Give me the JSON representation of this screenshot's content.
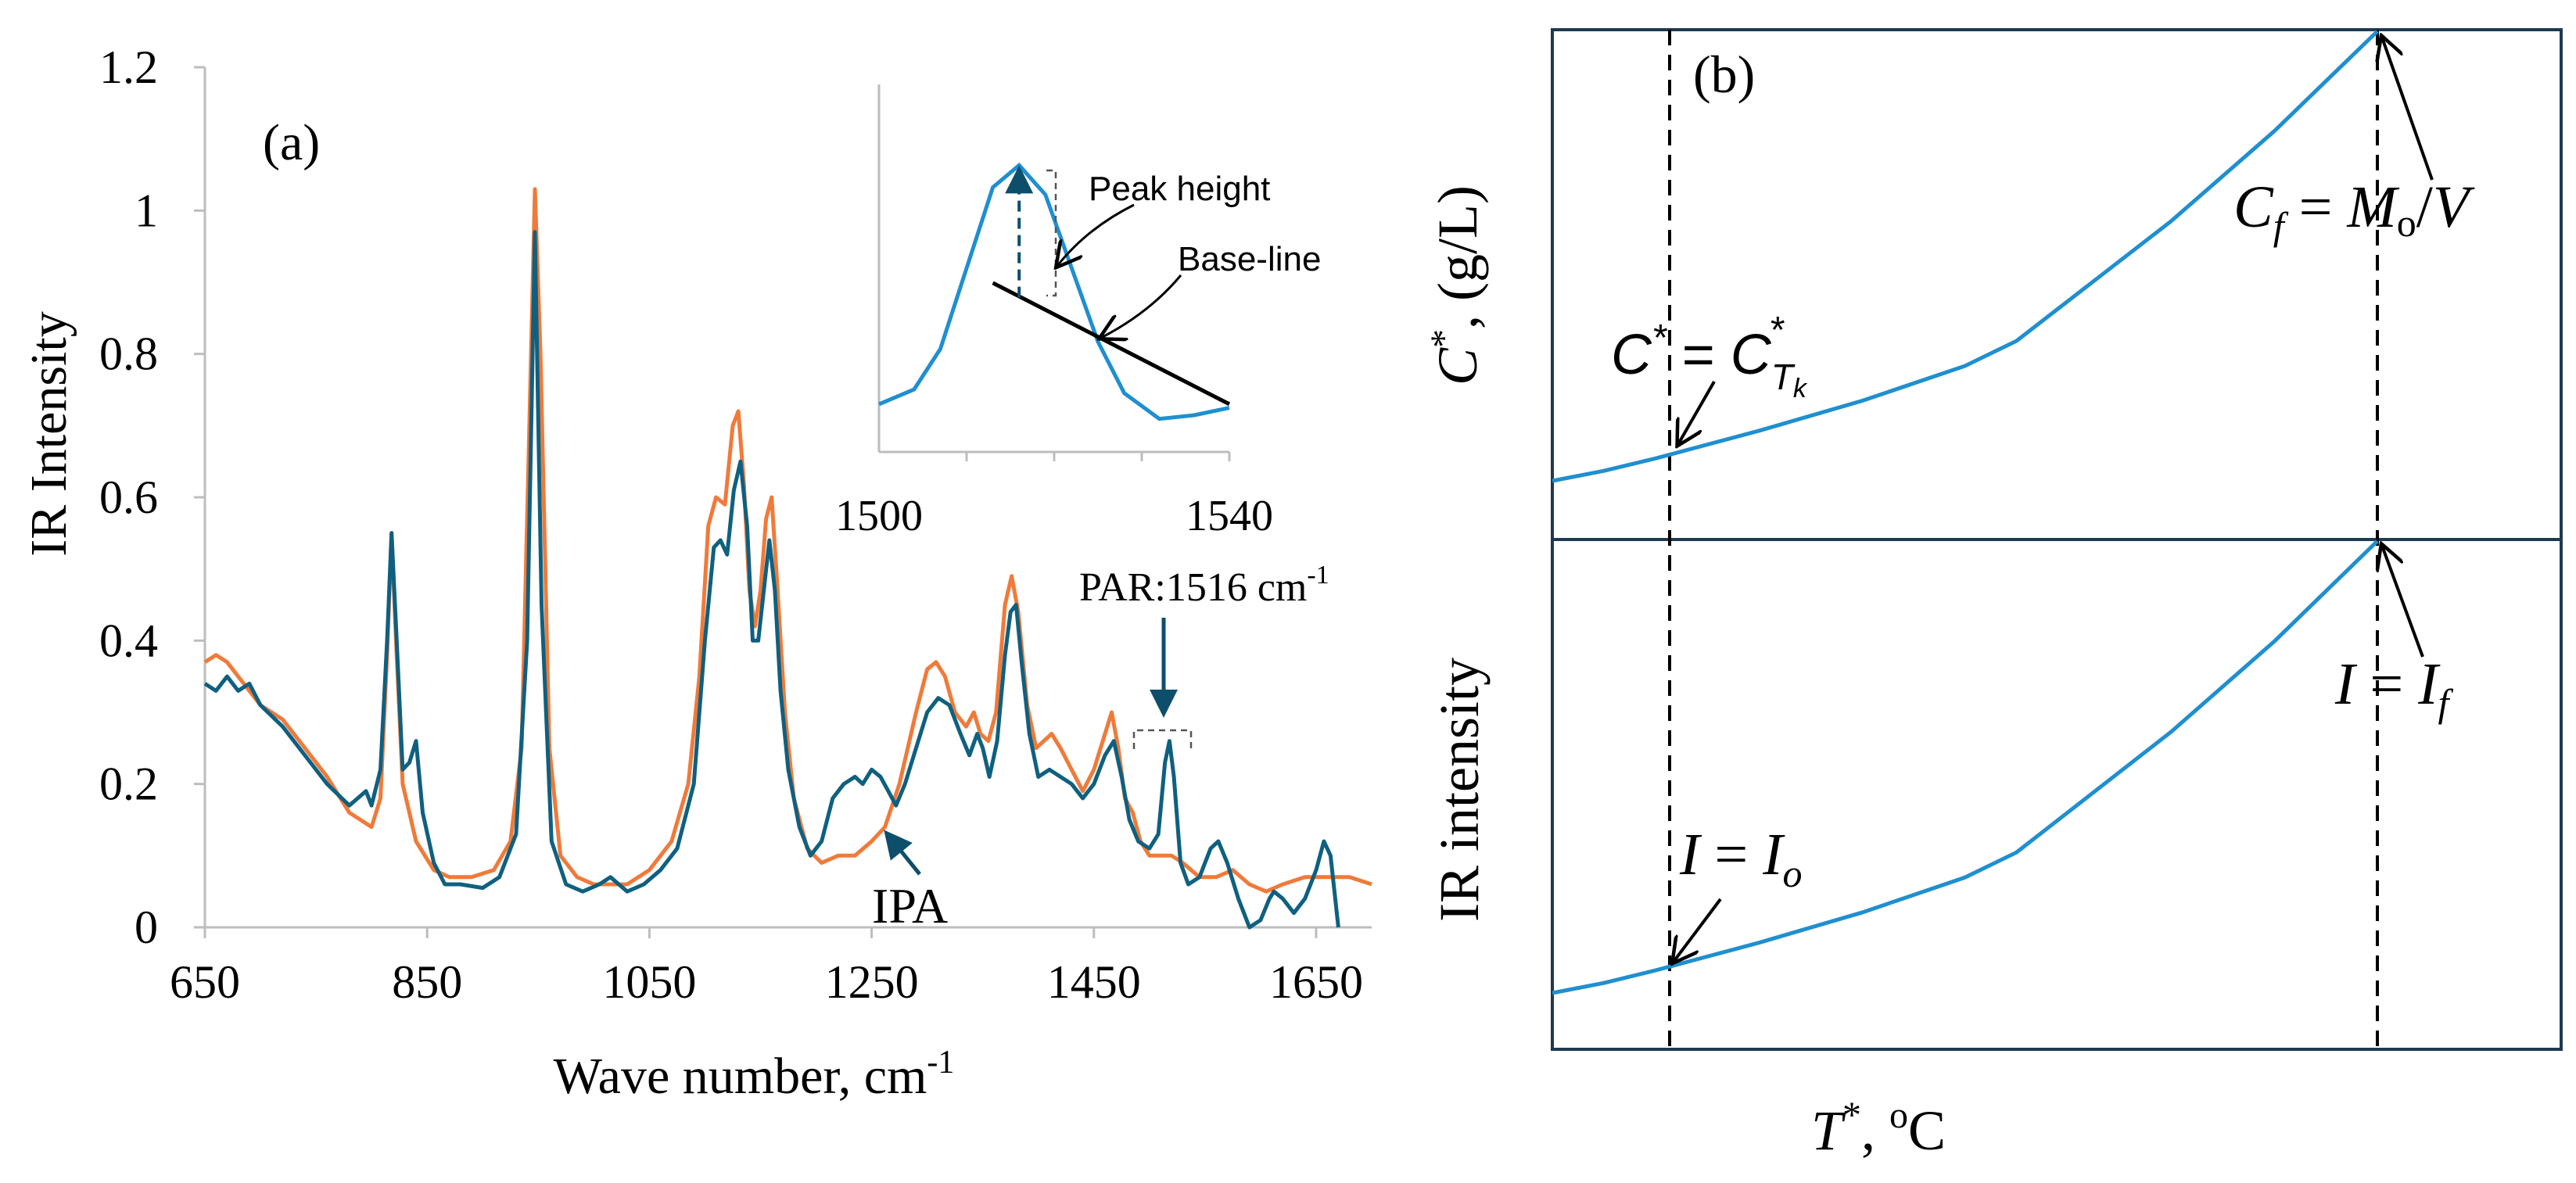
{
  "colors": {
    "blue_series": "#0f6080",
    "orange_series": "#f07a3a",
    "curve": "#1f8fd0",
    "annotation_blue": "#0d4f6b",
    "axis": "#bdbdbd",
    "frame": "#1e3a52",
    "text": "#000000"
  },
  "chart_data": [
    {
      "id": "a",
      "type": "line",
      "panel_label": "(a)",
      "xlabel_main": "Wave number, cm",
      "xlabel_sup": "-1",
      "ylabel": "IR Intensity",
      "xlim": [
        650,
        1700
      ],
      "ylim": [
        0,
        1.2
      ],
      "x_ticks": [
        650,
        850,
        1050,
        1250,
        1450,
        1650
      ],
      "y_ticks": [
        0,
        0.2,
        0.4,
        0.6,
        0.8,
        1,
        1.2
      ],
      "y_tick_labels": [
        "0",
        "0.2",
        "0.4",
        "0.6",
        "0.8",
        "1",
        "1.2"
      ],
      "series": [
        {
          "name": "PAR",
          "color_key": "blue_series",
          "points": [
            [
              650,
              0.34
            ],
            [
              660,
              0.33
            ],
            [
              670,
              0.35
            ],
            [
              680,
              0.33
            ],
            [
              690,
              0.34
            ],
            [
              700,
              0.31
            ],
            [
              720,
              0.28
            ],
            [
              740,
              0.24
            ],
            [
              760,
              0.2
            ],
            [
              780,
              0.17
            ],
            [
              795,
              0.19
            ],
            [
              800,
              0.17
            ],
            [
              808,
              0.22
            ],
            [
              814,
              0.4
            ],
            [
              818,
              0.55
            ],
            [
              822,
              0.42
            ],
            [
              828,
              0.22
            ],
            [
              834,
              0.23
            ],
            [
              840,
              0.26
            ],
            [
              846,
              0.16
            ],
            [
              856,
              0.09
            ],
            [
              866,
              0.06
            ],
            [
              880,
              0.06
            ],
            [
              900,
              0.055
            ],
            [
              915,
              0.07
            ],
            [
              930,
              0.13
            ],
            [
              940,
              0.4
            ],
            [
              947,
              0.97
            ],
            [
              953,
              0.45
            ],
            [
              962,
              0.12
            ],
            [
              975,
              0.06
            ],
            [
              990,
              0.05
            ],
            [
              1005,
              0.06
            ],
            [
              1015,
              0.07
            ],
            [
              1030,
              0.05
            ],
            [
              1045,
              0.06
            ],
            [
              1060,
              0.08
            ],
            [
              1075,
              0.11
            ],
            [
              1090,
              0.2
            ],
            [
              1100,
              0.4
            ],
            [
              1108,
              0.53
            ],
            [
              1114,
              0.54
            ],
            [
              1120,
              0.52
            ],
            [
              1126,
              0.61
            ],
            [
              1132,
              0.65
            ],
            [
              1138,
              0.56
            ],
            [
              1143,
              0.4
            ],
            [
              1148,
              0.4
            ],
            [
              1153,
              0.47
            ],
            [
              1158,
              0.54
            ],
            [
              1163,
              0.47
            ],
            [
              1168,
              0.33
            ],
            [
              1175,
              0.22
            ],
            [
              1185,
              0.14
            ],
            [
              1195,
              0.1
            ],
            [
              1205,
              0.12
            ],
            [
              1215,
              0.18
            ],
            [
              1225,
              0.2
            ],
            [
              1235,
              0.21
            ],
            [
              1242,
              0.2
            ],
            [
              1250,
              0.22
            ],
            [
              1258,
              0.21
            ],
            [
              1265,
              0.19
            ],
            [
              1272,
              0.17
            ],
            [
              1280,
              0.2
            ],
            [
              1290,
              0.25
            ],
            [
              1300,
              0.3
            ],
            [
              1310,
              0.32
            ],
            [
              1320,
              0.31
            ],
            [
              1330,
              0.27
            ],
            [
              1338,
              0.24
            ],
            [
              1345,
              0.27
            ],
            [
              1350,
              0.25
            ],
            [
              1356,
              0.21
            ],
            [
              1363,
              0.26
            ],
            [
              1370,
              0.38
            ],
            [
              1375,
              0.44
            ],
            [
              1380,
              0.45
            ],
            [
              1385,
              0.37
            ],
            [
              1392,
              0.27
            ],
            [
              1400,
              0.21
            ],
            [
              1410,
              0.22
            ],
            [
              1420,
              0.21
            ],
            [
              1430,
              0.2
            ],
            [
              1440,
              0.18
            ],
            [
              1450,
              0.2
            ],
            [
              1460,
              0.24
            ],
            [
              1468,
              0.26
            ],
            [
              1475,
              0.21
            ],
            [
              1482,
              0.15
            ],
            [
              1490,
              0.12
            ],
            [
              1500,
              0.11
            ],
            [
              1508,
              0.13
            ],
            [
              1514,
              0.23
            ],
            [
              1518,
              0.26
            ],
            [
              1522,
              0.21
            ],
            [
              1528,
              0.09
            ],
            [
              1535,
              0.06
            ],
            [
              1545,
              0.07
            ],
            [
              1555,
              0.11
            ],
            [
              1562,
              0.12
            ],
            [
              1570,
              0.09
            ],
            [
              1580,
              0.04
            ],
            [
              1590,
              0.0
            ],
            [
              1600,
              0.01
            ],
            [
              1608,
              0.04
            ],
            [
              1612,
              0.05
            ],
            [
              1620,
              0.04
            ],
            [
              1630,
              0.02
            ],
            [
              1640,
              0.04
            ],
            [
              1650,
              0.08
            ],
            [
              1657,
              0.12
            ],
            [
              1663,
              0.1
            ],
            [
              1670,
              0.0
            ]
          ]
        },
        {
          "name": "IPA",
          "color_key": "orange_series",
          "points": [
            [
              650,
              0.37
            ],
            [
              660,
              0.38
            ],
            [
              670,
              0.37
            ],
            [
              680,
              0.35
            ],
            [
              690,
              0.33
            ],
            [
              700,
              0.31
            ],
            [
              720,
              0.29
            ],
            [
              740,
              0.25
            ],
            [
              760,
              0.21
            ],
            [
              780,
              0.16
            ],
            [
              800,
              0.14
            ],
            [
              808,
              0.18
            ],
            [
              814,
              0.38
            ],
            [
              818,
              0.55
            ],
            [
              822,
              0.4
            ],
            [
              828,
              0.2
            ],
            [
              840,
              0.12
            ],
            [
              856,
              0.08
            ],
            [
              870,
              0.07
            ],
            [
              890,
              0.07
            ],
            [
              910,
              0.08
            ],
            [
              925,
              0.12
            ],
            [
              935,
              0.25
            ],
            [
              942,
              0.7
            ],
            [
              947,
              1.03
            ],
            [
              952,
              0.8
            ],
            [
              960,
              0.25
            ],
            [
              970,
              0.1
            ],
            [
              985,
              0.07
            ],
            [
              1000,
              0.06
            ],
            [
              1015,
              0.06
            ],
            [
              1030,
              0.06
            ],
            [
              1050,
              0.08
            ],
            [
              1070,
              0.12
            ],
            [
              1085,
              0.2
            ],
            [
              1095,
              0.35
            ],
            [
              1103,
              0.56
            ],
            [
              1110,
              0.6
            ],
            [
              1118,
              0.59
            ],
            [
              1125,
              0.7
            ],
            [
              1130,
              0.72
            ],
            [
              1135,
              0.62
            ],
            [
              1140,
              0.47
            ],
            [
              1145,
              0.42
            ],
            [
              1150,
              0.47
            ],
            [
              1155,
              0.57
            ],
            [
              1160,
              0.6
            ],
            [
              1165,
              0.48
            ],
            [
              1172,
              0.3
            ],
            [
              1180,
              0.18
            ],
            [
              1192,
              0.11
            ],
            [
              1205,
              0.09
            ],
            [
              1220,
              0.1
            ],
            [
              1235,
              0.1
            ],
            [
              1250,
              0.12
            ],
            [
              1262,
              0.14
            ],
            [
              1275,
              0.2
            ],
            [
              1290,
              0.3
            ],
            [
              1300,
              0.36
            ],
            [
              1308,
              0.37
            ],
            [
              1316,
              0.35
            ],
            [
              1325,
              0.3
            ],
            [
              1335,
              0.28
            ],
            [
              1342,
              0.3
            ],
            [
              1348,
              0.27
            ],
            [
              1355,
              0.26
            ],
            [
              1362,
              0.3
            ],
            [
              1370,
              0.45
            ],
            [
              1376,
              0.49
            ],
            [
              1382,
              0.44
            ],
            [
              1390,
              0.31
            ],
            [
              1398,
              0.25
            ],
            [
              1405,
              0.26
            ],
            [
              1412,
              0.27
            ],
            [
              1420,
              0.25
            ],
            [
              1430,
              0.22
            ],
            [
              1440,
              0.19
            ],
            [
              1450,
              0.22
            ],
            [
              1460,
              0.27
            ],
            [
              1466,
              0.3
            ],
            [
              1472,
              0.25
            ],
            [
              1478,
              0.18
            ],
            [
              1485,
              0.16
            ],
            [
              1492,
              0.12
            ],
            [
              1500,
              0.1
            ],
            [
              1510,
              0.1
            ],
            [
              1520,
              0.1
            ],
            [
              1530,
              0.09
            ],
            [
              1545,
              0.07
            ],
            [
              1560,
              0.07
            ],
            [
              1575,
              0.08
            ],
            [
              1590,
              0.06
            ],
            [
              1605,
              0.05
            ],
            [
              1620,
              0.06
            ],
            [
              1640,
              0.07
            ],
            [
              1660,
              0.07
            ],
            [
              1680,
              0.07
            ],
            [
              1700,
              0.06
            ]
          ]
        }
      ],
      "annotations": {
        "par_label_main": "PAR:1516 cm",
        "par_label_sup": "-1",
        "ipa_label": "IPA"
      },
      "inset": {
        "xlim": [
          1500,
          1540
        ],
        "x_tick_labels": [
          "1500",
          "1540"
        ],
        "peak_height_label": "Peak height",
        "baseline_label": "Base-line",
        "curve_points": [
          [
            1500,
            0.13
          ],
          [
            1504,
            0.17
          ],
          [
            1507,
            0.28
          ],
          [
            1510,
            0.5
          ],
          [
            1513,
            0.72
          ],
          [
            1516,
            0.78
          ],
          [
            1519,
            0.7
          ],
          [
            1522,
            0.5
          ],
          [
            1525,
            0.3
          ],
          [
            1528,
            0.16
          ],
          [
            1532,
            0.09
          ],
          [
            1536,
            0.1
          ],
          [
            1540,
            0.12
          ]
        ],
        "baseline_points": [
          [
            1513,
            0.46
          ],
          [
            1540,
            0.13
          ]
        ],
        "peak": {
          "x": 1516,
          "top": 0.78,
          "base": 0.42
        }
      }
    },
    {
      "id": "b",
      "type": "line",
      "panel_label": "(b)",
      "top_ylabel": "C*, (g/L)",
      "bottom_ylabel": "IR intensity",
      "xlabel": "T*, °C",
      "labels": {
        "c_star": "C* = C*Tk",
        "c_f": "Cf = Mo/V",
        "i_o": "I = Io",
        "i_f": "I = If"
      },
      "curve_points": [
        [
          0,
          0.1
        ],
        [
          0.05,
          0.12
        ],
        [
          0.1,
          0.145
        ],
        [
          0.2,
          0.2
        ],
        [
          0.3,
          0.26
        ],
        [
          0.4,
          0.33
        ],
        [
          0.45,
          0.38
        ],
        [
          0.5,
          0.46
        ],
        [
          0.6,
          0.62
        ],
        [
          0.7,
          0.8
        ],
        [
          0.8,
          1.0
        ]
      ],
      "marker_x": [
        0.115,
        0.8
      ]
    }
  ]
}
